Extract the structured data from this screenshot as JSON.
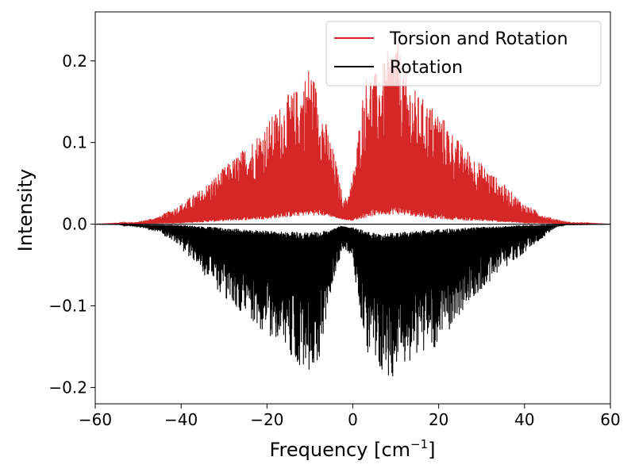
{
  "chart_data": {
    "type": "line",
    "xlabel": "Frequency [cm",
    "xlabel_sup": "−1",
    "xlabel_close": "]",
    "ylabel": "Intensity",
    "xlim": [
      -60,
      60
    ],
    "ylim": [
      -0.22,
      0.26
    ],
    "xticks": [
      -60,
      -40,
      -20,
      0,
      20,
      40,
      60
    ],
    "xtick_labels": [
      "−60",
      "−40",
      "−20",
      "0",
      "20",
      "40",
      "60"
    ],
    "yticks": [
      -0.2,
      -0.1,
      0.0,
      0.1,
      0.2
    ],
    "ytick_labels": [
      "−0.2",
      "−0.1",
      "0.0",
      "0.1",
      "0.2"
    ],
    "grid": false,
    "legend_position": "top-right",
    "series": [
      {
        "name": "Torsion and Rotation",
        "color": "#d62728",
        "envelope_x": [
          -60,
          -55,
          -50,
          -45,
          -40,
          -35,
          -30,
          -25,
          -20,
          -15,
          -12,
          -10,
          -8,
          -6,
          -4,
          -3,
          -2,
          -1,
          0,
          1,
          2,
          3,
          4,
          6,
          8,
          10,
          12,
          15,
          20,
          25,
          30,
          35,
          40,
          45,
          50,
          55,
          60
        ],
        "envelope_y": [
          0.0,
          0.001,
          0.003,
          0.01,
          0.025,
          0.045,
          0.07,
          0.095,
          0.125,
          0.16,
          0.17,
          0.2,
          0.16,
          0.12,
          0.08,
          0.05,
          0.03,
          0.04,
          0.06,
          0.1,
          0.15,
          0.185,
          0.19,
          0.185,
          0.21,
          0.235,
          0.19,
          0.16,
          0.14,
          0.1,
          0.075,
          0.05,
          0.025,
          0.01,
          0.003,
          0.001,
          0.0
        ],
        "baseline_x": [
          -60,
          -40,
          -20,
          -10,
          -6,
          -3,
          0,
          3,
          6,
          10,
          20,
          40,
          60
        ],
        "baseline_y": [
          0.0,
          0.001,
          0.006,
          0.011,
          0.01,
          0.006,
          0.004,
          0.008,
          0.011,
          0.012,
          0.006,
          0.001,
          0.0
        ]
      },
      {
        "name": "Rotation",
        "color": "#000000",
        "envelope_x": [
          -60,
          -55,
          -50,
          -45,
          -40,
          -35,
          -30,
          -25,
          -20,
          -15,
          -12,
          -10,
          -8,
          -6,
          -4,
          -2,
          0,
          2,
          4,
          6,
          8,
          10,
          12,
          15,
          20,
          25,
          30,
          35,
          40,
          45,
          47,
          50,
          55,
          60
        ],
        "envelope_y": [
          0.0,
          0.0,
          -0.004,
          -0.01,
          -0.03,
          -0.06,
          -0.09,
          -0.115,
          -0.135,
          -0.16,
          -0.175,
          -0.18,
          -0.17,
          -0.11,
          -0.06,
          -0.03,
          -0.05,
          -0.12,
          -0.18,
          -0.19,
          -0.185,
          -0.19,
          -0.175,
          -0.16,
          -0.15,
          -0.11,
          -0.08,
          -0.055,
          -0.035,
          -0.015,
          -0.005,
          0.0,
          0.0,
          0.0
        ],
        "baseline_x": [
          -60,
          -40,
          -20,
          -10,
          -6,
          -3,
          0,
          3,
          6,
          10,
          20,
          40,
          60
        ],
        "baseline_y": [
          0.0,
          -0.001,
          -0.008,
          -0.01,
          -0.008,
          -0.002,
          -0.004,
          -0.008,
          -0.012,
          -0.01,
          -0.006,
          -0.001,
          0.0
        ]
      }
    ]
  }
}
